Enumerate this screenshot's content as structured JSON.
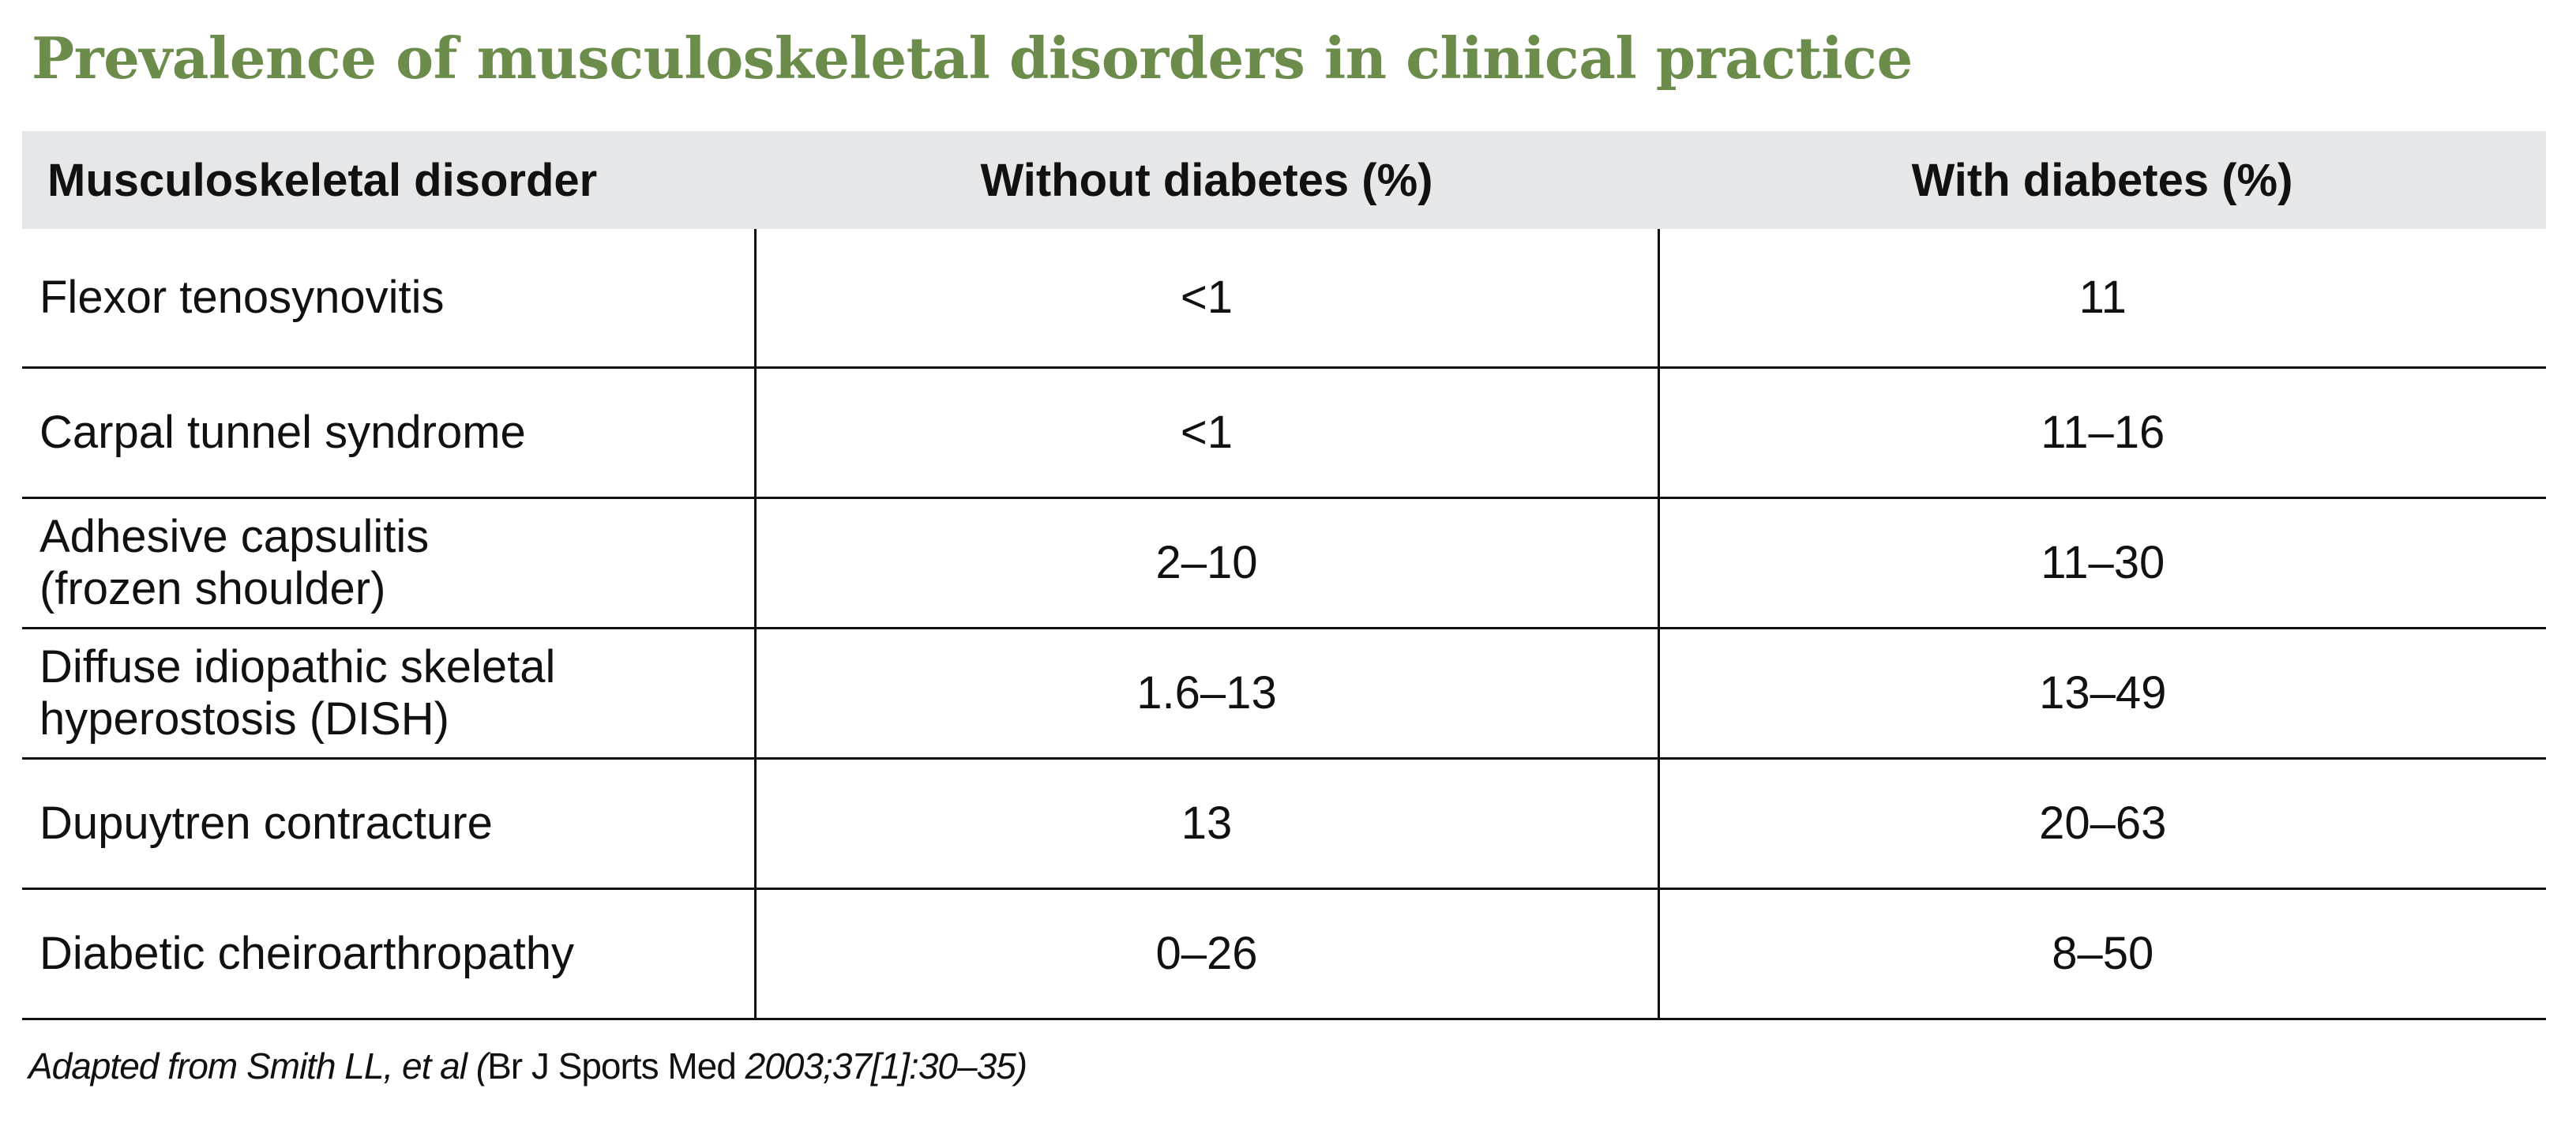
{
  "title": "Prevalence of musculoskeletal disorders in clinical practice",
  "table": {
    "headers": [
      "Musculoskeletal disorder",
      "Without diabetes (%)",
      "With diabetes (%)"
    ],
    "rows": [
      {
        "disorder_lines": [
          "Flexor tenosynovitis"
        ],
        "without": "<1",
        "with": "11"
      },
      {
        "disorder_lines": [
          "Carpal tunnel syndrome"
        ],
        "without": "<1",
        "with": "11–16"
      },
      {
        "disorder_lines": [
          "Adhesive capsulitis",
          "(frozen shoulder)"
        ],
        "without": "2–10",
        "with": "11–30"
      },
      {
        "disorder_lines": [
          "Diffuse idiopathic skeletal",
          "hyperostosis (DISH)"
        ],
        "without": "1.6–13",
        "with": "13–49"
      },
      {
        "disorder_lines": [
          "Dupuytren contracture"
        ],
        "without": "13",
        "with": "20–63"
      },
      {
        "disorder_lines": [
          "Diabetic cheiroarthropathy"
        ],
        "without": "0–26",
        "with": "8–50"
      }
    ]
  },
  "source": {
    "part1": "Adapted from Smith LL, et al (",
    "part2": "Br J Sports Med",
    "part3": " 2003;37[1]:30–35)"
  },
  "colors": {
    "title": "#6b8c4a",
    "header_bg": "#e6e7e9",
    "rule": "#111111"
  }
}
